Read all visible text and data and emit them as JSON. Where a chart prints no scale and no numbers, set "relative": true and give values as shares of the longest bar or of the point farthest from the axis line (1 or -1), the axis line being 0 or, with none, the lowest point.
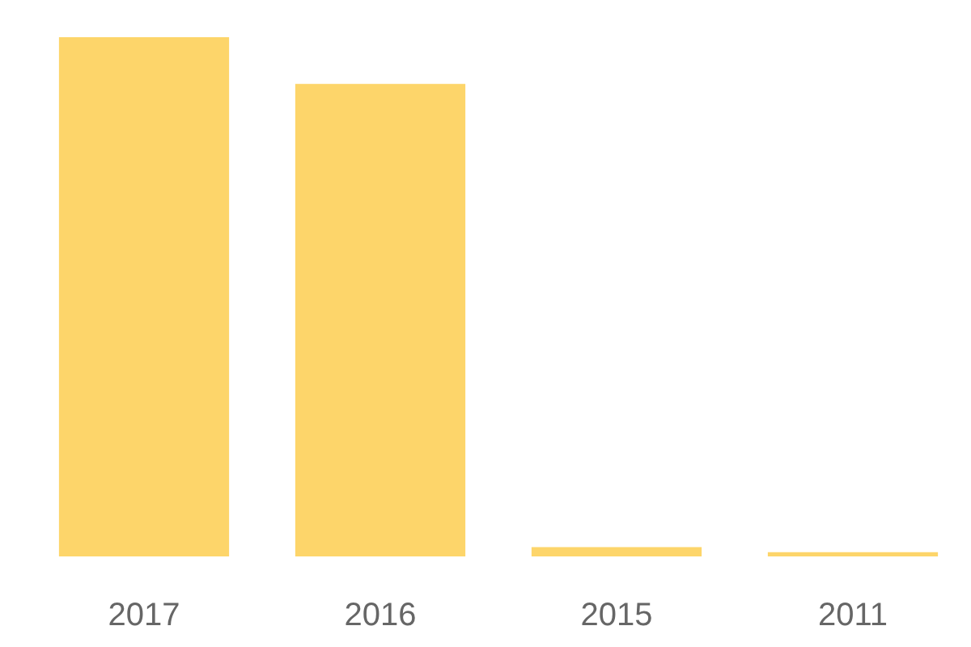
{
  "chart_data": {
    "type": "bar",
    "relative": true,
    "categories": [
      "2017",
      "2016",
      "2015",
      "2011"
    ],
    "values": [
      1,
      0.91,
      0.018,
      0.008
    ],
    "color": "#fdd56a",
    "grid": false,
    "legend": false
  }
}
